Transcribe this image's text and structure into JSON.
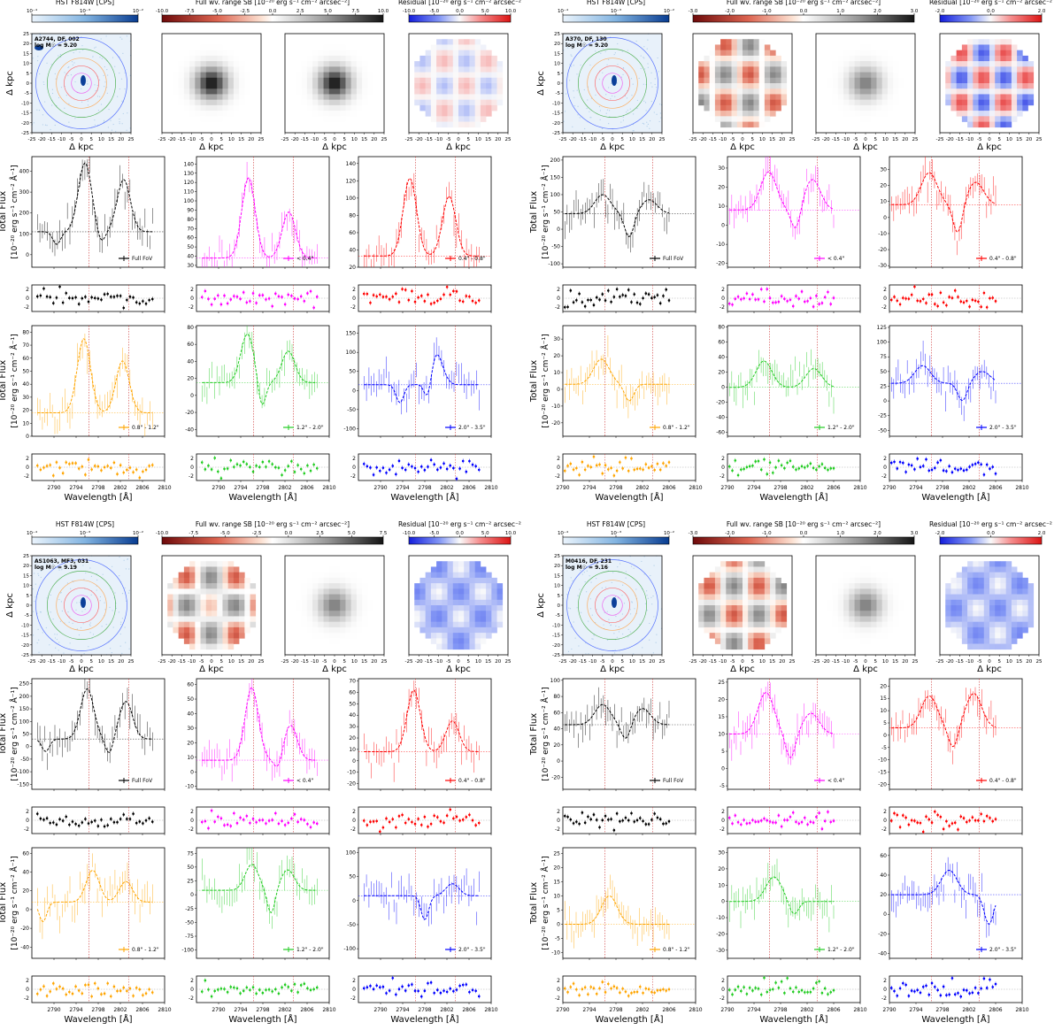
{
  "figure": {
    "colorbar_labels": {
      "hst": "HST F814W [CPS]",
      "full_sb_a": "Full wv. range SB [10$^{-20}$ erg s$^{-1}$ cm$^{-2}$ arcsec$^{-2}$]",
      "resid_a": "Residual [10$^{-20}$ erg s$^{-1}$ cm$^{-2}$ arcsec$^{-2}$"
    },
    "map_axis_label": "Δ kpc",
    "flux_ylabel_line1": "Total Flux",
    "flux_ylabel_line2": "[10⁻²⁰ erg s⁻¹ cm⁻² Å⁻¹]",
    "wavelength_label": "Wavelength [Å]"
  },
  "colors": {
    "full": "#000000",
    "inner": "#ff00ff",
    "ring1": "#ff0000",
    "ring2": "#ffa500",
    "ring3": "#22cc22",
    "ring4": "#0000ff",
    "ref": "#cc3333"
  },
  "chart_data": [
    {
      "type": "figure-panel",
      "galaxy": [
        "A2744, DF, 002",
        "log M$_{\\odot}$ = 9.20"
      ],
      "hst_cbar": {
        "ticks": [
          "10⁻⁴",
          "10⁻³",
          "10⁻²"
        ]
      },
      "sb_cbar": {
        "ticks": [
          "-10.0",
          "-7.5",
          "-5.0",
          "-2.5",
          "0.0",
          "2.5",
          "5.0",
          "7.5",
          "10.0"
        ]
      },
      "res_cbar": {
        "ticks": [
          "-10.0",
          "-5.0",
          "0.0",
          "5.0",
          "10.0"
        ]
      },
      "map_ticks": [
        "-25",
        "-20",
        "-15",
        "-10",
        "-5",
        "0",
        "5",
        "10",
        "15",
        "20",
        "25"
      ],
      "xlim": [
        2786,
        2810
      ],
      "xticks": [
        "2790",
        "2794",
        "2798",
        "2802",
        "2806",
        "2810"
      ],
      "lines": [
        2796.35,
        2803.53
      ],
      "spectra": [
        {
          "name": "Full FoV",
          "ylim": [
            -60,
            470
          ],
          "yticks": [
            0,
            100,
            200,
            300,
            400
          ],
          "continuum": 110,
          "peaks": [
            [
              2795.6,
              440
            ],
            [
              2802.6,
              360
            ]
          ],
          "absorptions": [
            [
              2790.5,
              0
            ],
            [
              2798.5,
              10
            ]
          ]
        },
        {
          "name": "< 0.4\"",
          "ylim": [
            28,
            148
          ],
          "yticks": [
            30,
            40,
            50,
            60,
            70,
            80,
            90,
            100,
            110,
            120,
            130,
            140
          ],
          "continuum": 38,
          "peaks": [
            [
              2795.4,
              125
            ],
            [
              2802.7,
              88
            ]
          ],
          "absorptions": []
        },
        {
          "name": "0.4\" - 0.8\"",
          "ylim": [
            20,
            148
          ],
          "yticks": [
            20,
            40,
            60,
            80,
            100,
            120,
            140
          ],
          "continuum": 33,
          "peaks": [
            [
              2795.3,
              123
            ],
            [
              2802.4,
              102
            ]
          ],
          "absorptions": []
        },
        {
          "name": "0.8\" - 1.2\"",
          "ylim": [
            0,
            85
          ],
          "yticks": [
            0,
            10,
            20,
            30,
            40,
            50,
            60,
            70,
            80
          ],
          "continuum": 18,
          "peaks": [
            [
              2795.4,
              75
            ],
            [
              2802.4,
              58
            ]
          ],
          "absorptions": []
        },
        {
          "name": "1.2\" - 2.0\"",
          "ylim": [
            -48,
            82
          ],
          "yticks": [
            -40,
            -20,
            0,
            20,
            40,
            60,
            80
          ],
          "continuum": 15,
          "peaks": [
            [
              2795.2,
              72
            ],
            [
              2802.6,
              52
            ]
          ],
          "absorptions": [
            [
              2797.8,
              -40
            ]
          ]
        },
        {
          "name": "2.0\" - 3.5\"",
          "ylim": [
            -120,
            170
          ],
          "yticks": [
            -100,
            -50,
            0,
            50,
            100,
            150
          ],
          "continuum": 15,
          "peaks": [
            [
              2800,
              100
            ]
          ],
          "absorptions": [
            [
              2793.5,
              -70
            ],
            [
              2798.6,
              -100
            ]
          ]
        }
      ]
    },
    {
      "type": "figure-panel",
      "galaxy": [
        "A370, DF, 130",
        "log M$_{\\odot}$ = 9.20"
      ],
      "hst_cbar": {
        "ticks": [
          "10⁻⁴",
          "10⁻³",
          "10⁻²"
        ]
      },
      "sb_cbar": {
        "ticks": [
          "-3.0",
          "-2.0",
          "-1.0",
          "0.0",
          "1.0",
          "2.0",
          "3.0"
        ]
      },
      "res_cbar": {
        "ticks": [
          "-2.0",
          "0.0",
          "2.0"
        ]
      },
      "map_ticks": [
        "-25",
        "-20",
        "-15",
        "-10",
        "-5",
        "0",
        "5",
        "10",
        "15",
        "20",
        "25"
      ],
      "xlim": [
        2790,
        2810
      ],
      "xticks": [
        "2790",
        "2794",
        "2798",
        "2802",
        "2806",
        "2810"
      ],
      "lines": [
        2796.35,
        2803.53
      ],
      "spectra": [
        {
          "name": "Full FoV",
          "ylim": [
            -110,
            210
          ],
          "yticks": [
            -100,
            -50,
            0,
            50,
            100,
            150,
            200
          ],
          "continuum": 45,
          "peaks": [
            [
              2796,
              100
            ],
            [
              2803,
              85
            ]
          ],
          "absorptions": [
            [
              2800,
              -80
            ]
          ]
        },
        {
          "name": "< 0.4\"",
          "ylim": [
            -22,
            36
          ],
          "yticks": [
            -20,
            -10,
            0,
            10,
            20,
            30
          ],
          "continuum": 8,
          "peaks": [
            [
              2796.2,
              28
            ],
            [
              2802.8,
              24
            ]
          ],
          "absorptions": [
            [
              2800.3,
              -12
            ]
          ]
        },
        {
          "name": "0.4\" - 0.8\"",
          "ylim": [
            -31,
            38
          ],
          "yticks": [
            -30,
            -20,
            -10,
            0,
            10,
            20,
            30
          ],
          "continuum": 8,
          "peaks": [
            [
              2796,
              28
            ],
            [
              2803,
              22
            ]
          ],
          "absorptions": [
            [
              2800.3,
              -25
            ]
          ]
        },
        {
          "name": "0.8\" - 1.2\"",
          "ylim": [
            -28,
            38
          ],
          "yticks": [
            -20,
            -10,
            0,
            10,
            20,
            30
          ],
          "continuum": 3,
          "peaks": [
            [
              2795.8,
              18
            ]
          ],
          "absorptions": [
            [
              2800,
              -15
            ]
          ]
        },
        {
          "name": "1.2\" - 2.0\"",
          "ylim": [
            -65,
            82
          ],
          "yticks": [
            -60,
            -40,
            -20,
            0,
            20,
            40,
            60,
            80
          ],
          "continuum": 0,
          "peaks": [
            [
              2795.5,
              35
            ],
            [
              2803,
              25
            ]
          ],
          "absorptions": []
        },
        {
          "name": "2.0\" - 3.5\"",
          "ylim": [
            -60,
            128
          ],
          "yticks": [
            -50,
            -25,
            0,
            25,
            50,
            75,
            100,
            125
          ],
          "continuum": 30,
          "peaks": [
            [
              2795,
              60
            ],
            [
              2804,
              50
            ]
          ],
          "absorptions": [
            [
              2801,
              -25
            ]
          ]
        }
      ]
    },
    {
      "type": "figure-panel",
      "galaxy": [
        "AS1063, MF3, 031",
        "log M$_{\\odot}$ = 9.19"
      ],
      "hst_cbar": {
        "ticks": [
          "10⁻⁴",
          "10⁻³",
          "10⁻²"
        ]
      },
      "sb_cbar": {
        "ticks": [
          "-10.0",
          "-7.5",
          "-5.0",
          "-2.5",
          "0.0",
          "2.5",
          "5.0",
          "7.5"
        ]
      },
      "res_cbar": {
        "ticks": [
          "-10.0",
          "-5.0",
          "0.0",
          "5.0",
          "10.0"
        ]
      },
      "map_ticks": [
        "-25",
        "-20",
        "-15",
        "-10",
        "-5",
        "0",
        "5",
        "10",
        "15",
        "20",
        "25"
      ],
      "xlim": [
        2786,
        2810
      ],
      "xticks": [
        "2790",
        "2794",
        "2798",
        "2802",
        "2806",
        "2810"
      ],
      "lines": [
        2796.35,
        2803.53
      ],
      "spectra": [
        {
          "name": "Full FoV",
          "ylim": [
            -170,
            270
          ],
          "yticks": [
            -150,
            -100,
            -50,
            0,
            50,
            100,
            150,
            200,
            250
          ],
          "continuum": 30,
          "peaks": [
            [
              2796,
              230
            ],
            [
              2803,
              180
            ]
          ],
          "absorptions": [
            [
              2800,
              -80
            ],
            [
              2788.5,
              -60
            ]
          ]
        },
        {
          "name": "< 0.4\"",
          "ylim": [
            -12,
            64
          ],
          "yticks": [
            -10,
            0,
            10,
            20,
            30,
            40,
            50,
            60
          ],
          "continuum": 8,
          "peaks": [
            [
              2796,
              58
            ],
            [
              2803,
              32
            ]
          ],
          "absorptions": [
            [
              2800.8,
              -6
            ]
          ]
        },
        {
          "name": "0.4\" - 0.8\"",
          "ylim": [
            -25,
            72
          ],
          "yticks": [
            -20,
            -10,
            0,
            10,
            20,
            30,
            40,
            50,
            60,
            70
          ],
          "continuum": 8,
          "peaks": [
            [
              2796,
              62
            ],
            [
              2803,
              35
            ]
          ],
          "absorptions": []
        },
        {
          "name": "0.8\" - 1.2\"",
          "ylim": [
            -52,
            66
          ],
          "yticks": [
            -40,
            -20,
            0,
            20,
            40,
            60
          ],
          "continuum": 8,
          "peaks": [
            [
              2797,
              42
            ],
            [
              2803,
              30
            ]
          ],
          "absorptions": [
            [
              2788,
              -30
            ]
          ]
        },
        {
          "name": "1.2\" - 2.0\"",
          "ylim": [
            -115,
            85
          ],
          "yticks": [
            -100,
            -75,
            -50,
            -25,
            0,
            25,
            50,
            75
          ],
          "continuum": 8,
          "peaks": [
            [
              2796,
              55
            ],
            [
              2802.5,
              45
            ]
          ],
          "absorptions": [
            [
              2799.5,
              -70
            ]
          ]
        },
        {
          "name": "2.0\" - 3.5\"",
          "ylim": [
            -120,
            110
          ],
          "yticks": [
            -100,
            -50,
            0,
            50,
            100
          ],
          "continuum": 10,
          "peaks": [
            [
              2803,
              35
            ]
          ],
          "absorptions": [
            [
              2798,
              -80
            ]
          ]
        }
      ]
    },
    {
      "type": "figure-panel",
      "galaxy": [
        "M0416, DF, 231",
        "log M$_{\\odot}$ = 9.16"
      ],
      "hst_cbar": {
        "ticks": [
          "10⁻⁴",
          "10⁻³",
          "10⁻²"
        ]
      },
      "sb_cbar": {
        "ticks": [
          "-3.0",
          "-2.0",
          "-1.0",
          "0.0",
          "1.0",
          "2.0",
          "3.0"
        ]
      },
      "res_cbar": {
        "ticks": [
          "-2.0",
          "0.0",
          "2.0"
        ]
      },
      "map_ticks": [
        "-25",
        "-20",
        "-15",
        "-10",
        "-5",
        "0",
        "5",
        "10",
        "15",
        "20",
        "25"
      ],
      "xlim": [
        2790,
        2810
      ],
      "xticks": [
        "2790",
        "2794",
        "2798",
        "2802",
        "2806",
        "2810"
      ],
      "lines": [
        2796.35,
        2803.53
      ],
      "spectra": [
        {
          "name": "Full FoV",
          "ylim": [
            -35,
            102
          ],
          "yticks": [
            -20,
            0,
            20,
            40,
            60,
            80,
            100
          ],
          "continuum": 45,
          "peaks": [
            [
              2796,
              70
            ],
            [
              2802,
              65
            ]
          ],
          "absorptions": [
            [
              2799.5,
              10
            ]
          ]
        },
        {
          "name": "< 0.4\"",
          "ylim": [
            -6,
            26
          ],
          "yticks": [
            -5,
            0,
            5,
            10,
            15,
            20,
            25
          ],
          "continuum": 10,
          "peaks": [
            [
              2795.8,
              22
            ],
            [
              2802.6,
              16
            ]
          ],
          "absorptions": [
            [
              2799.5,
              -3
            ]
          ]
        },
        {
          "name": "0.4\" - 0.8\"",
          "ylim": [
            -22,
            23
          ],
          "yticks": [
            -20,
            -15,
            -10,
            -5,
            0,
            5,
            10,
            15,
            20
          ],
          "continuum": 3,
          "peaks": [
            [
              2796,
              16
            ],
            [
              2802.7,
              17
            ]
          ],
          "absorptions": [
            [
              2799.6,
              -12
            ]
          ]
        },
        {
          "name": "0.8\" - 1.2\"",
          "ylim": [
            -12,
            27
          ],
          "yticks": [
            -10,
            -5,
            0,
            5,
            10,
            15,
            20,
            25
          ],
          "continuum": 0,
          "peaks": [
            [
              2797,
              10
            ]
          ],
          "absorptions": []
        },
        {
          "name": "1.2\" - 2.0\"",
          "ylim": [
            -35,
            33
          ],
          "yticks": [
            -30,
            -20,
            -10,
            0,
            10,
            20,
            30
          ],
          "continuum": 0,
          "peaks": [
            [
              2797,
              15
            ]
          ],
          "absorptions": [
            [
              2800,
              -15
            ]
          ]
        },
        {
          "name": "2.0\" - 3.5\"",
          "ylim": [
            -45,
            68
          ],
          "yticks": [
            -40,
            -20,
            0,
            20,
            40,
            60
          ],
          "continuum": 20,
          "peaks": [
            [
              2799,
              45
            ]
          ],
          "absorptions": [
            [
              2805,
              -35
            ]
          ]
        }
      ]
    }
  ]
}
